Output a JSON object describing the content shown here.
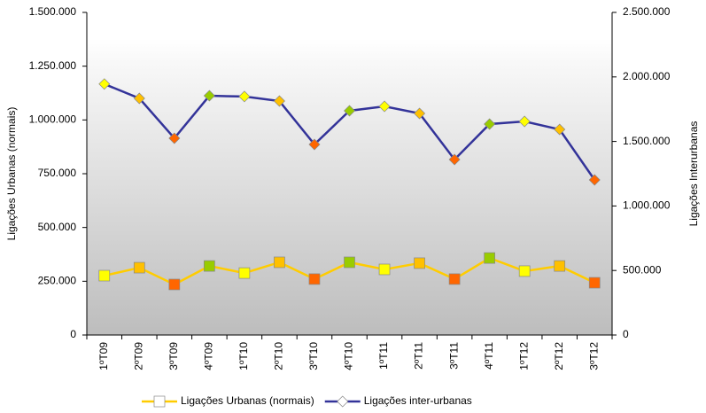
{
  "chart_data": {
    "type": "line",
    "y_label": "Ligações Urbanas (normais)",
    "y2_label": "Ligações Interurbanas",
    "categories": [
      "1ºT09",
      "2ºT09",
      "3ºT09",
      "4ºT09",
      "1ºT10",
      "2ºT10",
      "3ºT10",
      "4ºT10",
      "1ºT11",
      "2ºT11",
      "3ºT11",
      "4ºT11",
      "1ºT12",
      "2ºT12",
      "3ºT12"
    ],
    "series": [
      {
        "name": "Ligações Urbanas (normais)",
        "color": "#ffcc00",
        "marker": "square",
        "values": [
          276000,
          313000,
          235000,
          321000,
          288000,
          338000,
          260000,
          338000,
          305000,
          334000,
          260000,
          358000,
          297000,
          321000,
          243000
        ]
      },
      {
        "name": "Ligações inter-urbanas",
        "color": "#333399",
        "marker": "diamond",
        "axis": "y2",
        "values": [
          1945000,
          1834000,
          1525000,
          1854000,
          1848000,
          1813000,
          1477000,
          1738000,
          1772000,
          1717000,
          1360000,
          1635000,
          1655000,
          1593000,
          1202000
        ]
      }
    ],
    "marker_colors": [
      "#ffff00",
      "#ffc000",
      "#ff6600",
      "#99cc00",
      "#ffff00",
      "#ffc000",
      "#ff6600",
      "#99cc00",
      "#ffff00",
      "#ffc000",
      "#ff6600",
      "#99cc00",
      "#ffff00",
      "#ffc000",
      "#ff6600"
    ],
    "ylim": [
      0,
      1500000
    ],
    "yticks": [
      0,
      {
        "value": 250000,
        "label": "250.000"
      },
      {
        "value": 500000,
        "label": "500.000"
      },
      {
        "value": 750000,
        "label": "750.000"
      },
      {
        "value": 1000000,
        "label": "1.000.000"
      },
      {
        "value": 1250000,
        "label": "1.250.000"
      },
      {
        "value": 1500000,
        "label": "1.500.000"
      }
    ],
    "y2lim": [
      0,
      2500000
    ],
    "y2ticks": [
      0,
      {
        "value": 500000,
        "label": "500.000"
      },
      {
        "value": 1000000,
        "label": "1.000.000"
      },
      {
        "value": 1500000,
        "label": "1.500.000"
      },
      {
        "value": 2000000,
        "label": "2.000.000"
      },
      {
        "value": 2500000,
        "label": "2.500.000"
      }
    ],
    "grid": false,
    "legend": "bottom"
  }
}
